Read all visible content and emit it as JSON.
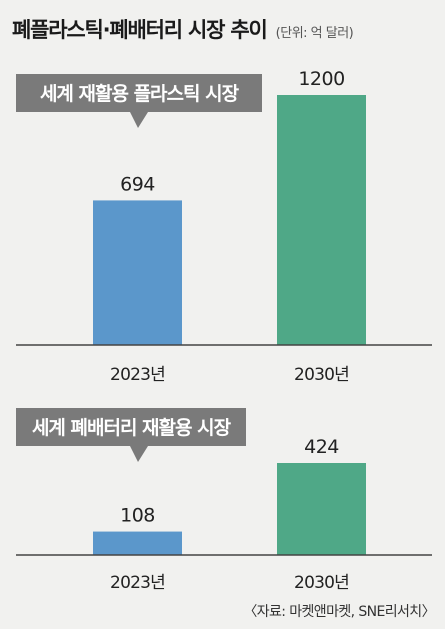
{
  "header": {
    "title": "폐플라스틱·폐배터리 시장 추이",
    "unit": "(단위: 억 달러)"
  },
  "source": "〈자료: 마켓앤마켓, SNE리서치〉",
  "colors": {
    "bar_2023": "#5b97cb",
    "bar_2030": "#4fa887",
    "callout": "#7a7a7a",
    "background": "#f1f1ef",
    "baseline": "#444444"
  },
  "chart_data": [
    {
      "type": "bar",
      "title": "세계 재활용 플라스틱 시장",
      "categories": [
        "2023년",
        "2030년"
      ],
      "values": [
        694,
        1200
      ],
      "value_labels": [
        "694",
        "1200"
      ],
      "ylim": [
        0,
        1200
      ]
    },
    {
      "type": "bar",
      "title": "세계 폐배터리 재활용 시장",
      "categories": [
        "2023년",
        "2030년"
      ],
      "values": [
        108,
        424
      ],
      "value_labels": [
        "108",
        "424"
      ],
      "ylim": [
        0,
        424
      ]
    }
  ]
}
